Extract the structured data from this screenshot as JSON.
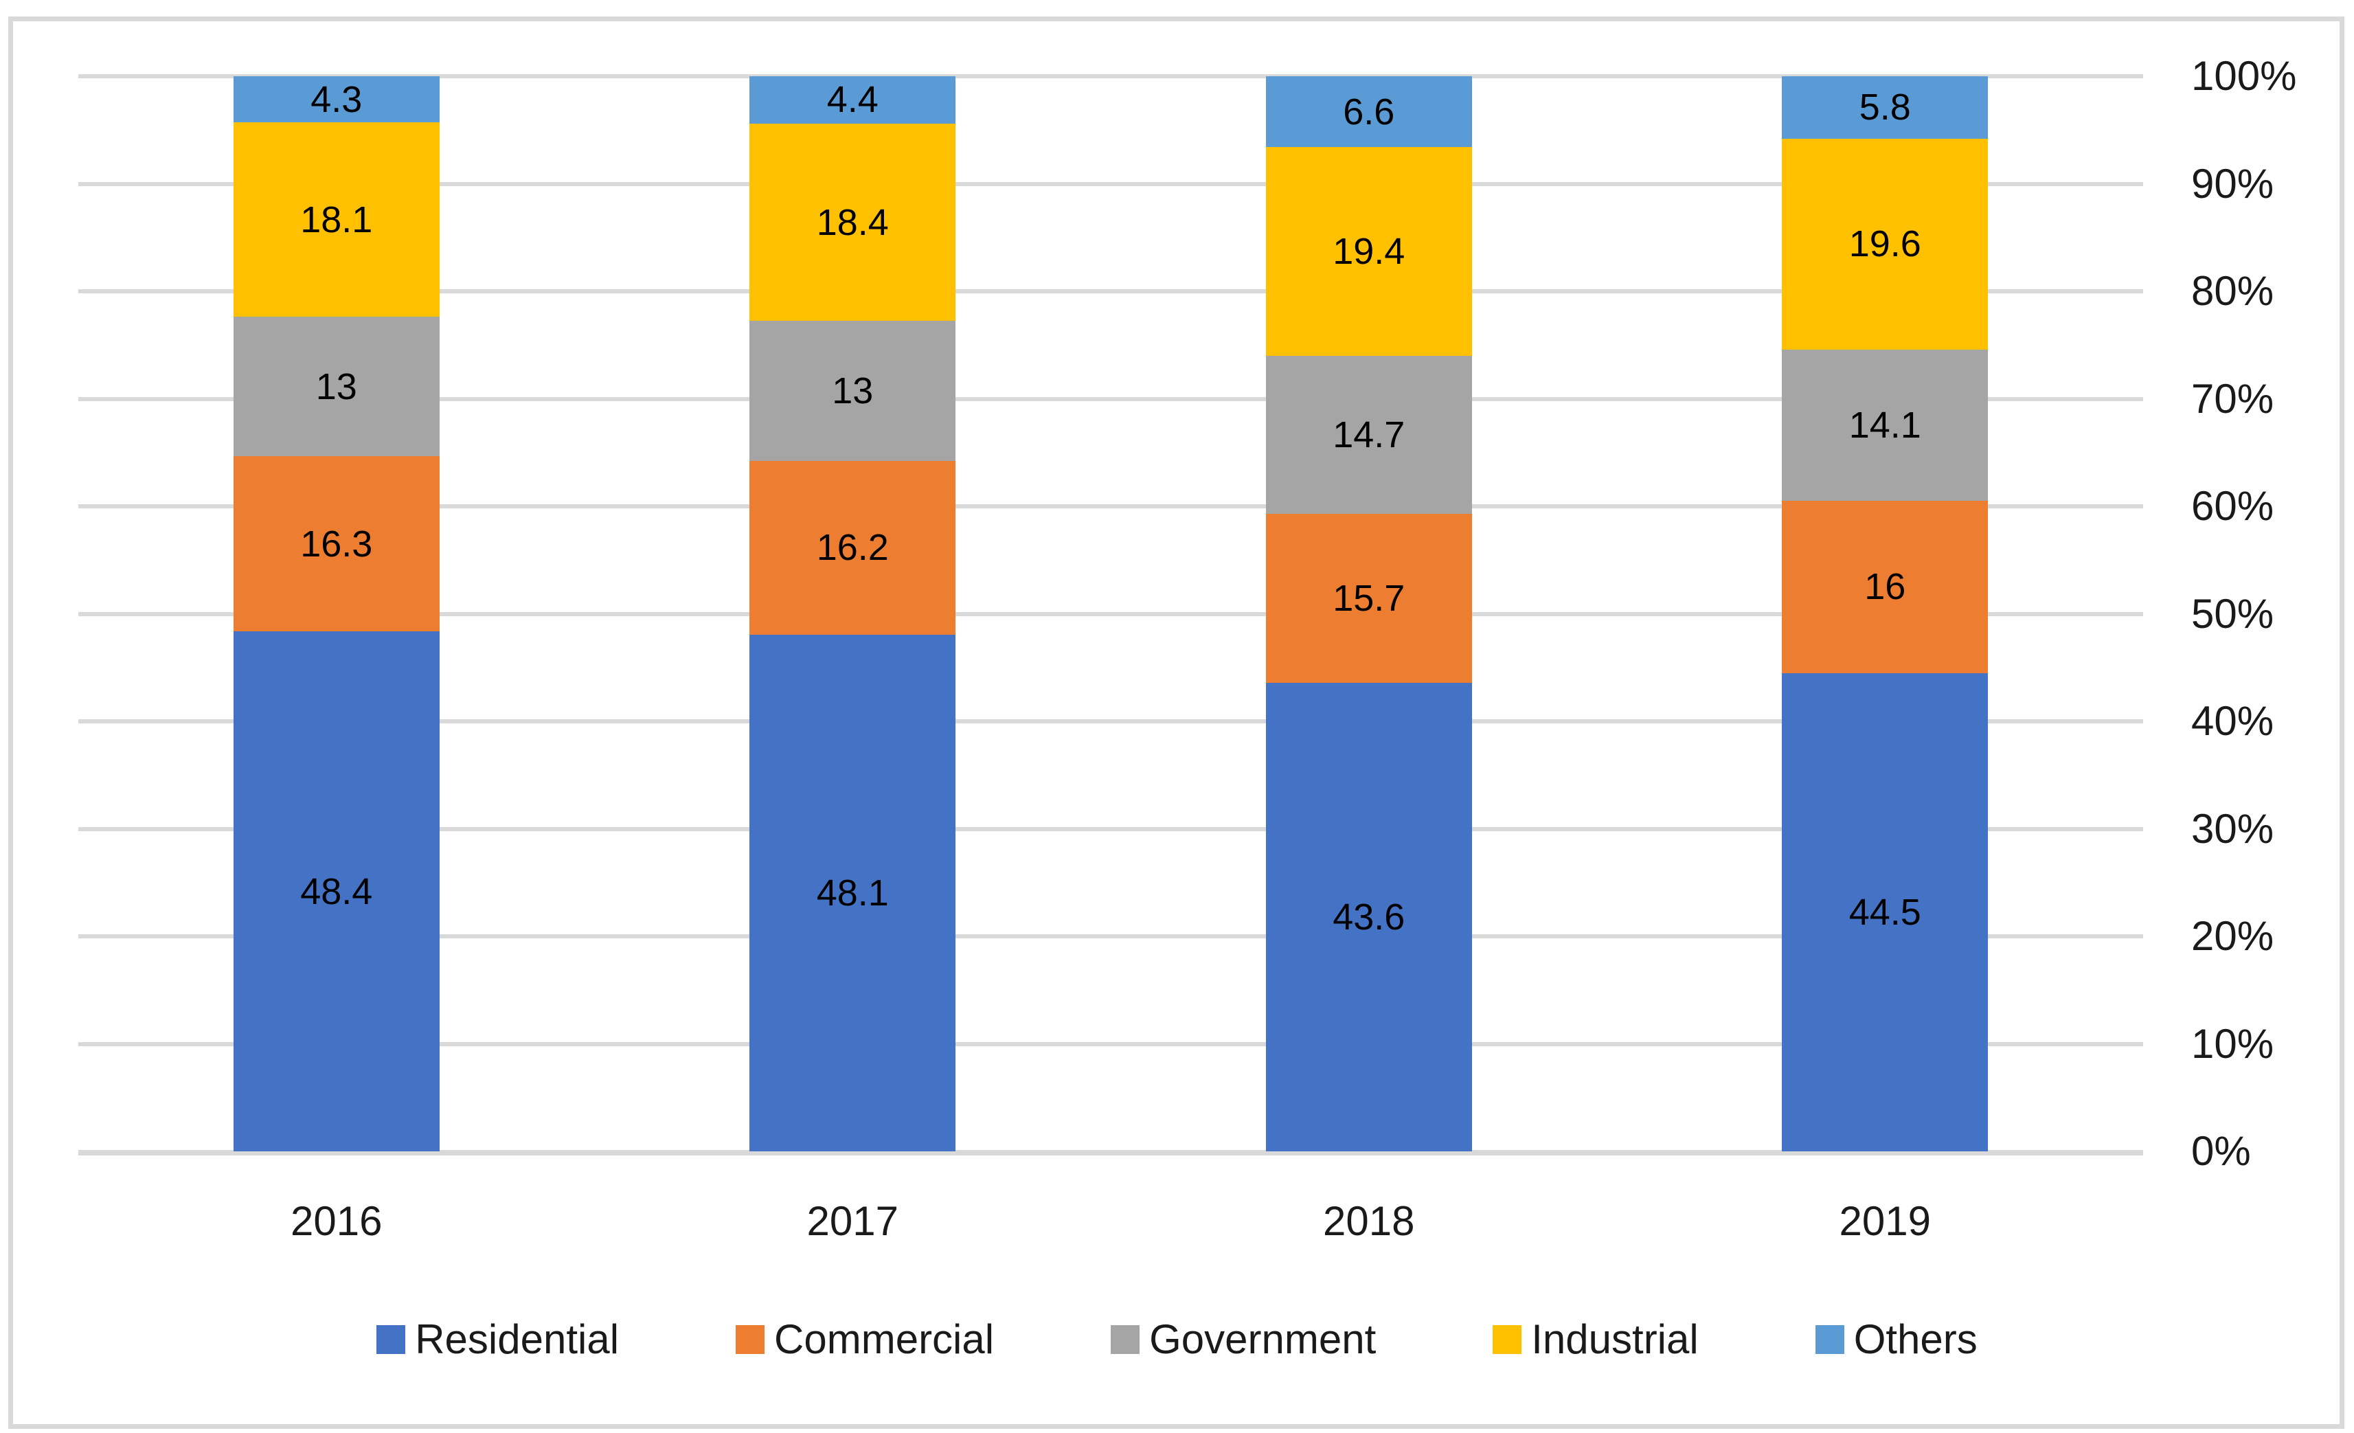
{
  "chart_data": {
    "type": "bar",
    "subtype": "stacked-100-percent-column",
    "title": "",
    "categories": [
      "2016",
      "2017",
      "2018",
      "2019"
    ],
    "series": [
      {
        "name": "Residential",
        "color": "#4472C4",
        "values": [
          48.4,
          48.1,
          43.6,
          44.5
        ],
        "labels": [
          "48.4",
          "48.1",
          "43.6",
          "44.5"
        ]
      },
      {
        "name": "Commercial",
        "color": "#ED7D31",
        "values": [
          16.3,
          16.2,
          15.7,
          16
        ],
        "labels": [
          "16.3",
          "16.2",
          "15.7",
          "16"
        ]
      },
      {
        "name": "Government",
        "color": "#A5A5A5",
        "values": [
          13,
          13,
          14.7,
          14.1
        ],
        "labels": [
          "13",
          "13",
          "14.7",
          "14.1"
        ]
      },
      {
        "name": "Industrial",
        "color": "#FFC000",
        "values": [
          18.1,
          18.4,
          19.4,
          19.6
        ],
        "labels": [
          "18.1",
          "18.4",
          "19.4",
          "19.6"
        ]
      },
      {
        "name": "Others",
        "color": "#5B9BD5",
        "values": [
          4.3,
          4.4,
          6.6,
          5.8
        ],
        "labels": [
          "4.3",
          "4.4",
          "6.6",
          "5.8"
        ]
      }
    ],
    "y_axis": {
      "side": "right",
      "min": 0,
      "max": 100,
      "step": 10,
      "unit": "%",
      "tick_labels": [
        "100%",
        "90%",
        "80%",
        "70%",
        "60%",
        "50%",
        "40%",
        "30%",
        "20%",
        "10%",
        "0%"
      ]
    },
    "legend": {
      "position": "bottom",
      "items": [
        "Residential",
        "Commercial",
        "Government",
        "Industrial",
        "Others"
      ]
    },
    "layout_hints": {
      "grid_visible": true,
      "gridline_color": "#D9D9D9",
      "frame_border_color": "#D9D9D9",
      "background_color": "#FFFFFF",
      "data_label_color": "#000000",
      "axis_label_color": "#1A1A1A"
    }
  }
}
